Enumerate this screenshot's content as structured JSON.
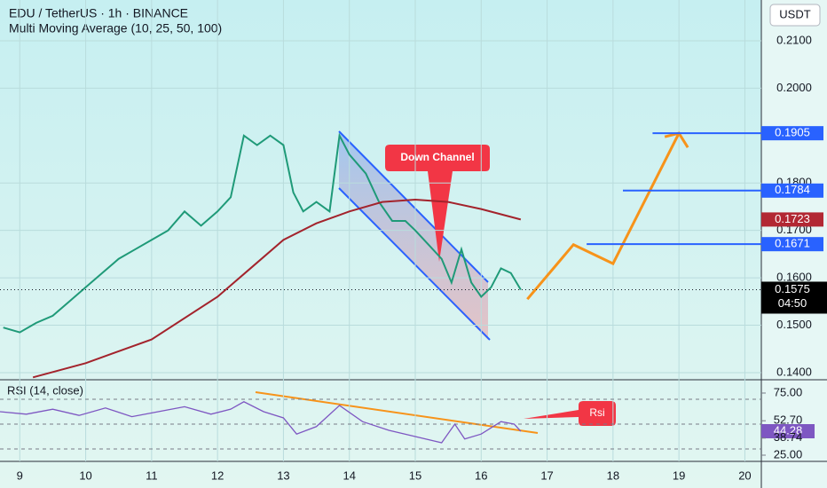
{
  "header": {
    "symbol": "EDU / TetherUS · 1h · BINANCE",
    "indicator": "Multi Moving Average (10, 25, 50, 100)"
  },
  "currency": "USDT",
  "chart_data": {
    "type": "line",
    "xlim": [
      8.7,
      20.25
    ],
    "ylim": [
      0.1385,
      0.2186
    ],
    "xticks": [
      9,
      10,
      11,
      12,
      13,
      14,
      15,
      16,
      17,
      18,
      19,
      20
    ],
    "yticks": [
      {
        "value": 0.21,
        "label": "0.2100"
      },
      {
        "value": 0.2,
        "label": "0.2000"
      },
      {
        "value": 0.18,
        "label": "0.1800"
      },
      {
        "value": 0.17,
        "label": "0.1700"
      },
      {
        "value": 0.16,
        "label": "0.1600"
      },
      {
        "value": 0.15,
        "label": "0.1500"
      },
      {
        "value": 0.14,
        "label": "0.1400"
      }
    ],
    "series": [
      {
        "color": "#1f9a78",
        "x": [
          8.75,
          9.0,
          9.25,
          9.5,
          9.75,
          10.0,
          10.25,
          10.5,
          10.75,
          11.0,
          11.25,
          11.5,
          11.75,
          12.0,
          12.2,
          12.4,
          12.6,
          12.8,
          13.0,
          13.15,
          13.3,
          13.5,
          13.7,
          13.85,
          14.0,
          14.25,
          14.45,
          14.65,
          14.85,
          15.0,
          15.2,
          15.4,
          15.55,
          15.7,
          15.85,
          16.0,
          16.15,
          16.3,
          16.45,
          16.6
        ],
        "values": [
          0.1495,
          0.1485,
          0.1505,
          0.152,
          0.155,
          0.158,
          0.161,
          0.164,
          0.166,
          0.168,
          0.17,
          0.174,
          0.171,
          0.174,
          0.177,
          0.19,
          0.188,
          0.19,
          0.188,
          0.178,
          0.174,
          0.176,
          0.174,
          0.19,
          0.186,
          0.182,
          0.176,
          0.172,
          0.172,
          0.17,
          0.167,
          0.164,
          0.159,
          0.166,
          0.159,
          0.156,
          0.158,
          0.162,
          0.161,
          0.1575
        ]
      },
      {
        "color": "#a3232c",
        "x": [
          9.2,
          10.0,
          11.0,
          12.0,
          12.5,
          13.0,
          13.5,
          14.0,
          14.5,
          15.0,
          15.5,
          16.0,
          16.6
        ],
        "values": [
          0.139,
          0.142,
          0.147,
          0.156,
          0.162,
          0.168,
          0.1715,
          0.174,
          0.176,
          0.1765,
          0.176,
          0.1745,
          0.1723
        ]
      }
    ],
    "price_levels": [
      {
        "value": 0.1905,
        "label": "0.1905"
      },
      {
        "value": 0.1784,
        "label": "0.1784"
      },
      {
        "value": 0.1671,
        "label": "0.1671"
      }
    ],
    "ma_last": {
      "value": 0.1723,
      "label": "0.1723"
    },
    "last_price": {
      "value": 0.1575,
      "label": "0.1575",
      "countdown": "04:50"
    },
    "projection": {
      "x": [
        16.7,
        17.4,
        18.0,
        19.0
      ],
      "values": [
        0.1555,
        0.167,
        0.163,
        0.1905
      ]
    },
    "annotations": [
      "Down Channel",
      "Rsi"
    ]
  },
  "rsi": {
    "title": "RSI (14, close)",
    "color": "#7e57c2",
    "ylim": [
      20,
      85.7
    ],
    "yticks": [
      {
        "value": 75,
        "label": "75.00"
      },
      {
        "value": 25,
        "label": "25.00"
      }
    ],
    "bands": [
      70,
      50,
      30
    ],
    "x": [
      8.7,
      9.1,
      9.5,
      9.9,
      10.3,
      10.7,
      11.1,
      11.5,
      11.9,
      12.2,
      12.4,
      12.7,
      13.0,
      13.2,
      13.5,
      13.85,
      14.2,
      14.6,
      15.0,
      15.4,
      15.6,
      15.75,
      16.0,
      16.3,
      16.5,
      16.6
    ],
    "values": [
      60,
      58,
      62,
      57,
      63,
      56,
      60,
      64,
      58,
      62,
      68,
      60,
      55,
      42,
      48,
      65,
      52,
      45,
      40,
      35,
      50,
      38,
      42,
      52,
      50,
      44.28
    ],
    "value_labels": [
      {
        "value": 52.7,
        "label": "52.70"
      },
      {
        "value": 44.28,
        "label": "44.28"
      },
      {
        "value": 38.74,
        "label": "38.74"
      }
    ]
  }
}
